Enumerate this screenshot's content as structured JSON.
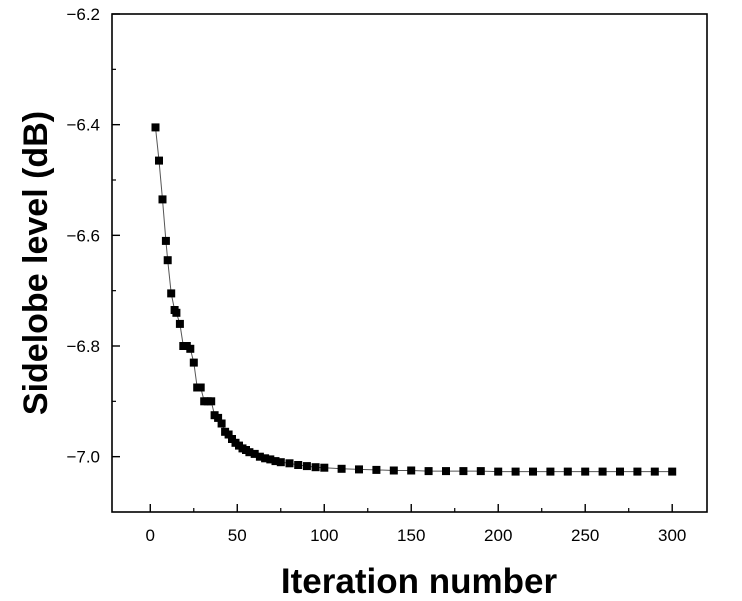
{
  "chart_data": {
    "type": "scatter",
    "xlabel": "Iteration number",
    "ylabel": "Sidelobe level (dB)",
    "xlim": [
      -22,
      320
    ],
    "ylim": [
      -7.1,
      -6.2
    ],
    "xticks": [
      0,
      50,
      100,
      150,
      200,
      250,
      300
    ],
    "yticks": [
      -7.0,
      -6.8,
      -6.6,
      -6.4,
      -6.2
    ],
    "xtick_labels": [
      "0",
      "50",
      "100",
      "150",
      "200",
      "250",
      "300"
    ],
    "ytick_labels": [
      "−7.0",
      "−6.8",
      "−6.6",
      "−6.4",
      "−6.2"
    ],
    "grid": false,
    "marker": "square",
    "connected": true,
    "series": [
      {
        "x": [
          3,
          5,
          7,
          9,
          10,
          12,
          14,
          15,
          17,
          19,
          21,
          23,
          25,
          27,
          29,
          31,
          33,
          35,
          37,
          39,
          41,
          43,
          45,
          47,
          49,
          51,
          53,
          55,
          57,
          60,
          63,
          66,
          69,
          72,
          75,
          80,
          85,
          90,
          95,
          100,
          110,
          120,
          130,
          140,
          150,
          160,
          170,
          180,
          190,
          200,
          210,
          220,
          230,
          240,
          250,
          260,
          270,
          280,
          290,
          300
        ],
        "y": [
          -6.405,
          -6.465,
          -6.535,
          -6.61,
          -6.645,
          -6.705,
          -6.735,
          -6.74,
          -6.76,
          -6.8,
          -6.8,
          -6.805,
          -6.83,
          -6.875,
          -6.875,
          -6.9,
          -6.9,
          -6.9,
          -6.925,
          -6.93,
          -6.94,
          -6.955,
          -6.96,
          -6.968,
          -6.975,
          -6.98,
          -6.985,
          -6.988,
          -6.992,
          -6.995,
          -7.0,
          -7.003,
          -7.005,
          -7.008,
          -7.01,
          -7.012,
          -7.015,
          -7.017,
          -7.019,
          -7.02,
          -7.022,
          -7.023,
          -7.024,
          -7.025,
          -7.025,
          -7.026,
          -7.026,
          -7.026,
          -7.026,
          -7.027,
          -7.027,
          -7.027,
          -7.027,
          -7.027,
          -7.027,
          -7.027,
          -7.027,
          -7.027,
          -7.027,
          -7.027
        ]
      }
    ]
  }
}
